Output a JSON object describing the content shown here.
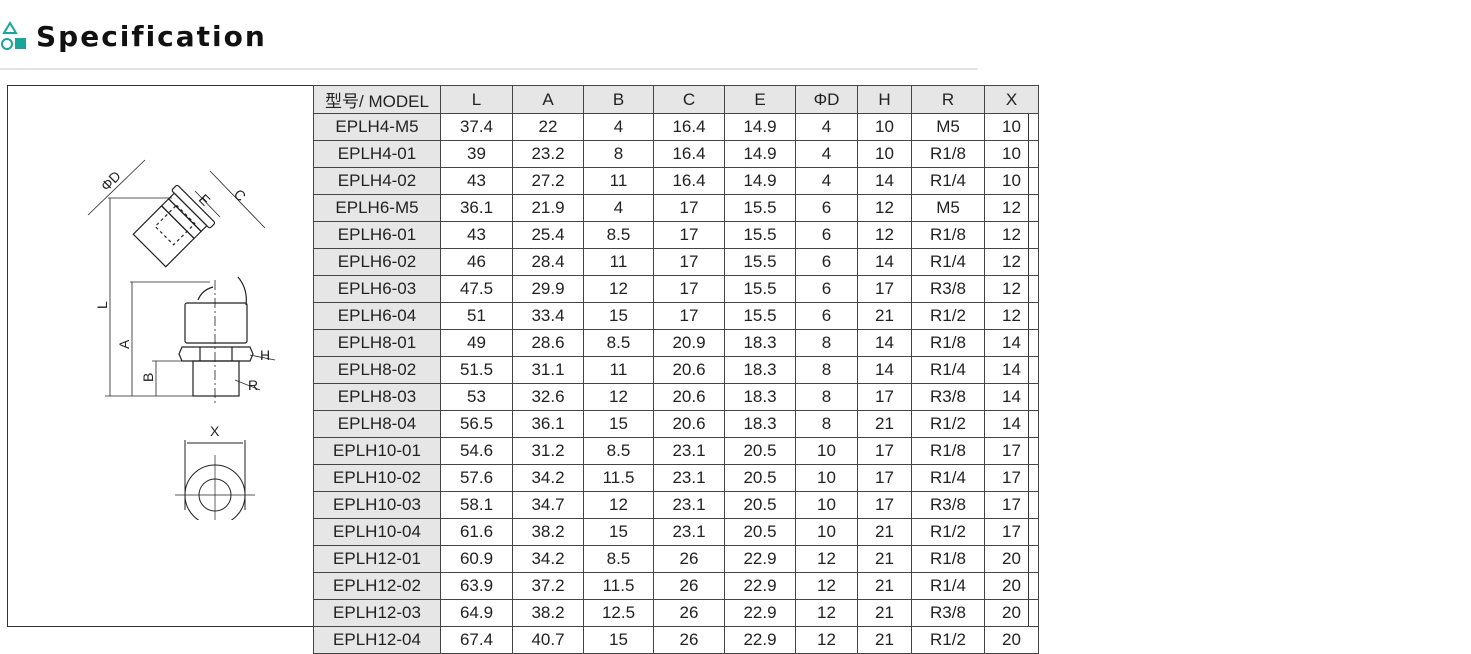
{
  "header": {
    "title": "Specification",
    "icon": "shapes-icon",
    "accent_color": "#1aa59a"
  },
  "drawing": {
    "labels": [
      "ΦD",
      "E",
      "C",
      "L",
      "A",
      "B",
      "H",
      "R",
      "X"
    ]
  },
  "table": {
    "columns": [
      "型号/ MODEL",
      "L",
      "A",
      "B",
      "C",
      "E",
      "ΦD",
      "H",
      "R",
      "X"
    ],
    "rows": [
      [
        "EPLH4-M5",
        "37.4",
        "22",
        "4",
        "16.4",
        "14.9",
        "4",
        "10",
        "M5",
        "10"
      ],
      [
        "EPLH4-01",
        "39",
        "23.2",
        "8",
        "16.4",
        "14.9",
        "4",
        "10",
        "R1/8",
        "10"
      ],
      [
        "EPLH4-02",
        "43",
        "27.2",
        "11",
        "16.4",
        "14.9",
        "4",
        "14",
        "R1/4",
        "10"
      ],
      [
        "EPLH6-M5",
        "36.1",
        "21.9",
        "4",
        "17",
        "15.5",
        "6",
        "12",
        "M5",
        "12"
      ],
      [
        "EPLH6-01",
        "43",
        "25.4",
        "8.5",
        "17",
        "15.5",
        "6",
        "12",
        "R1/8",
        "12"
      ],
      [
        "EPLH6-02",
        "46",
        "28.4",
        "11",
        "17",
        "15.5",
        "6",
        "14",
        "R1/4",
        "12"
      ],
      [
        "EPLH6-03",
        "47.5",
        "29.9",
        "12",
        "17",
        "15.5",
        "6",
        "17",
        "R3/8",
        "12"
      ],
      [
        "EPLH6-04",
        "51",
        "33.4",
        "15",
        "17",
        "15.5",
        "6",
        "21",
        "R1/2",
        "12"
      ],
      [
        "EPLH8-01",
        "49",
        "28.6",
        "8.5",
        "20.9",
        "18.3",
        "8",
        "14",
        "R1/8",
        "14"
      ],
      [
        "EPLH8-02",
        "51.5",
        "31.1",
        "11",
        "20.6",
        "18.3",
        "8",
        "14",
        "R1/4",
        "14"
      ],
      [
        "EPLH8-03",
        "53",
        "32.6",
        "12",
        "20.6",
        "18.3",
        "8",
        "17",
        "R3/8",
        "14"
      ],
      [
        "EPLH8-04",
        "56.5",
        "36.1",
        "15",
        "20.6",
        "18.3",
        "8",
        "21",
        "R1/2",
        "14"
      ],
      [
        "EPLH10-01",
        "54.6",
        "31.2",
        "8.5",
        "23.1",
        "20.5",
        "10",
        "17",
        "R1/8",
        "17"
      ],
      [
        "EPLH10-02",
        "57.6",
        "34.2",
        "11.5",
        "23.1",
        "20.5",
        "10",
        "17",
        "R1/4",
        "17"
      ],
      [
        "EPLH10-03",
        "58.1",
        "34.7",
        "12",
        "23.1",
        "20.5",
        "10",
        "17",
        "R3/8",
        "17"
      ],
      [
        "EPLH10-04",
        "61.6",
        "38.2",
        "15",
        "23.1",
        "20.5",
        "10",
        "21",
        "R1/2",
        "17"
      ],
      [
        "EPLH12-01",
        "60.9",
        "34.2",
        "8.5",
        "26",
        "22.9",
        "12",
        "21",
        "R1/8",
        "20"
      ],
      [
        "EPLH12-02",
        "63.9",
        "37.2",
        "11.5",
        "26",
        "22.9",
        "12",
        "21",
        "R1/4",
        "20"
      ],
      [
        "EPLH12-03",
        "64.9",
        "38.2",
        "12.5",
        "26",
        "22.9",
        "12",
        "21",
        "R3/8",
        "20"
      ],
      [
        "EPLH12-04",
        "67.4",
        "40.7",
        "15",
        "26",
        "22.9",
        "12",
        "21",
        "R1/2",
        "20"
      ]
    ]
  }
}
